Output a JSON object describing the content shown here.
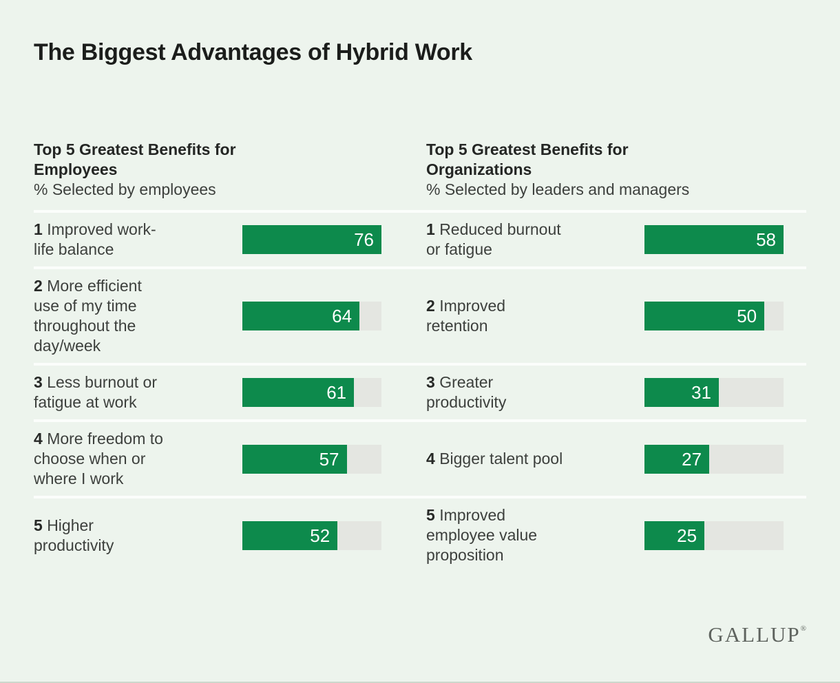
{
  "title": "The Biggest Advantages of Hybrid Work",
  "brand": {
    "name": "GALLUP",
    "registered_mark": "®"
  },
  "colors": {
    "background": "#edf4ed",
    "bar_fill": "#0d8a4c",
    "bar_track": "#e4e6e1",
    "divider": "#fbfdfb",
    "title_text": "#1b1d1b",
    "body_text": "#3d403d",
    "bar_value_text": "#ffffff"
  },
  "chart_data": {
    "type": "bar",
    "orientation": "horizontal",
    "title": "The Biggest Advantages of Hybrid Work",
    "unit": "%",
    "grid": false,
    "legend": false,
    "panels": [
      {
        "title": "Top 5 Greatest Benefits for Employees",
        "title_display": "Top 5 Greatest Benefits for\nEmployees",
        "subtitle": "% Selected by employees",
        "bar_scale_max": 76,
        "items": [
          {
            "rank": "1",
            "category": "Improved work-life balance",
            "label_display": "Improved work-\nlife balance",
            "value": 76
          },
          {
            "rank": "2",
            "category": "More efficient use of my time throughout the day/week",
            "label_display": "More efficient\nuse of my time\nthroughout the\nday/week",
            "value": 64
          },
          {
            "rank": "3",
            "category": "Less burnout or fatigue at work",
            "label_display": "Less burnout or\nfatigue at work",
            "value": 61
          },
          {
            "rank": "4",
            "category": "More freedom to choose when or where I work",
            "label_display": "More freedom to\nchoose when or\nwhere I work",
            "value": 57
          },
          {
            "rank": "5",
            "category": "Higher productivity",
            "label_display": "Higher\nproductivity",
            "value": 52
          }
        ]
      },
      {
        "title": "Top 5 Greatest Benefits for Organizations",
        "title_display": "Top 5 Greatest Benefits for\nOrganizations",
        "subtitle": "% Selected by leaders and managers",
        "bar_scale_max": 58,
        "items": [
          {
            "rank": "1",
            "category": "Reduced burnout or fatigue",
            "label_display": "Reduced burnout\nor fatigue",
            "value": 58
          },
          {
            "rank": "2",
            "category": "Improved retention",
            "label_display": "Improved\nretention",
            "value": 50
          },
          {
            "rank": "3",
            "category": "Greater productivity",
            "label_display": "Greater\nproductivity",
            "value": 31
          },
          {
            "rank": "4",
            "category": "Bigger talent pool",
            "label_display": "Bigger talent pool",
            "value": 27
          },
          {
            "rank": "5",
            "category": "Improved employee value proposition",
            "label_display": "Improved\nemployee value\nproposition",
            "value": 25
          }
        ]
      }
    ]
  }
}
